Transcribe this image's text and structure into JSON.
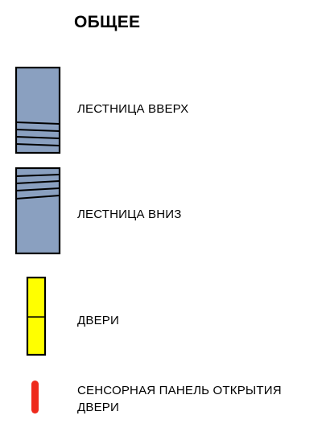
{
  "title": "ОБЩЕЕ",
  "legend": {
    "stairs_up": {
      "label": "ЛЕСТНИЦА ВВЕРХ",
      "color": "#8aa0c0"
    },
    "stairs_down": {
      "label": "ЛЕСТНИЦА ВНИЗ",
      "color": "#8aa0c0"
    },
    "doors": {
      "label": "ДВЕРИ",
      "color": "#ffff00"
    },
    "door_panel": {
      "label": "СЕНСОРНАЯ ПАНЕЛЬ ОТКРЫТИЯ ДВЕРИ",
      "color": "#ee2a1c"
    }
  }
}
